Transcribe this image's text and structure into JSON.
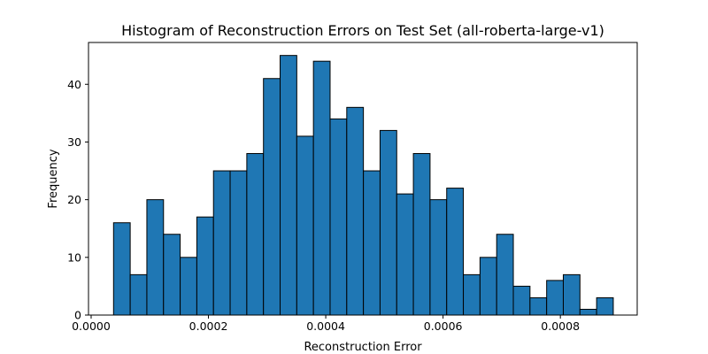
{
  "chart_data": {
    "type": "bar",
    "title": "Histogram of Reconstruction Errors on Test Set (all-roberta-large-v1)",
    "xlabel": "Reconstruction Error",
    "ylabel": "Frequency",
    "x_ticks": [
      0.0,
      0.0002,
      0.0004,
      0.0006,
      0.0008
    ],
    "x_tick_labels": [
      "0.0000",
      "0.0002",
      "0.0004",
      "0.0006",
      "0.0008"
    ],
    "y_ticks": [
      0,
      10,
      20,
      30,
      40
    ],
    "y_tick_labels": [
      "0",
      "10",
      "20",
      "30",
      "40"
    ],
    "xlim": [
      -4.5e-06,
      0.000931
    ],
    "ylim": [
      0,
      47.25
    ],
    "bin_start": 3.82e-05,
    "bin_width": 2.84e-05,
    "values": [
      16,
      7,
      20,
      14,
      10,
      17,
      25,
      25,
      28,
      41,
      45,
      31,
      44,
      34,
      36,
      25,
      32,
      21,
      28,
      20,
      22,
      7,
      10,
      14,
      5,
      3,
      6,
      7,
      1,
      3
    ],
    "bar_color": "#1f77b4",
    "edge_color": "#000000",
    "grid": false
  }
}
